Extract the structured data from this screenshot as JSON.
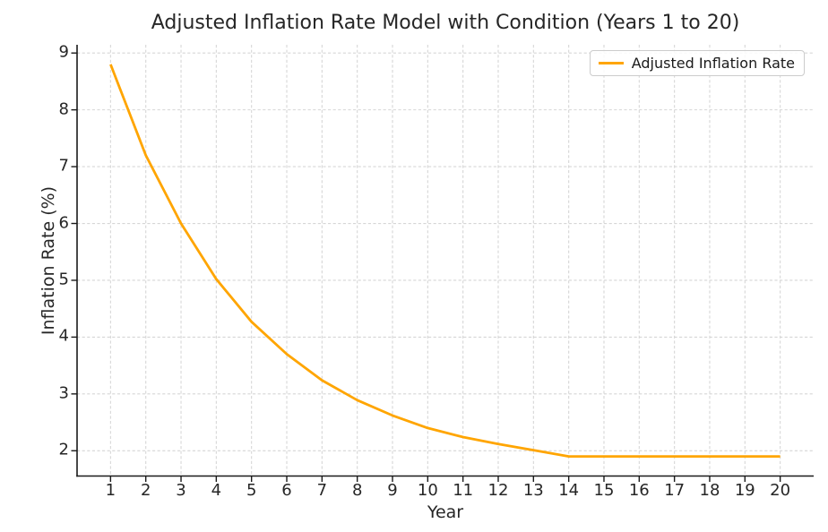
{
  "chart_data": {
    "type": "line",
    "title": "Adjusted Inflation Rate Model with Condition (Years 1 to 20)",
    "xlabel": "Year",
    "ylabel": "Inflation Rate (%)",
    "x": [
      1,
      2,
      3,
      4,
      5,
      6,
      7,
      8,
      9,
      10,
      11,
      12,
      13,
      14,
      15,
      16,
      17,
      18,
      19,
      20
    ],
    "series": [
      {
        "name": "Adjusted Inflation Rate",
        "color": "#FFA500",
        "values": [
          8.8,
          7.2,
          6.0,
          5.02,
          4.27,
          3.7,
          3.24,
          2.89,
          2.62,
          2.4,
          2.24,
          2.12,
          2.01,
          1.9,
          1.9,
          1.9,
          1.9,
          1.9,
          1.9,
          1.9
        ]
      }
    ],
    "xticks": [
      1,
      2,
      3,
      4,
      5,
      6,
      7,
      8,
      9,
      10,
      11,
      12,
      13,
      14,
      15,
      16,
      17,
      18,
      19,
      20
    ],
    "yticks": [
      2,
      3,
      4,
      5,
      6,
      7,
      8,
      9
    ],
    "xlim": [
      0.05,
      20.95
    ],
    "ylim": [
      1.555,
      9.145
    ],
    "grid": true,
    "grid_style": "dashed",
    "legend": {
      "position": "upper right",
      "entries": [
        "Adjusted Inflation Rate"
      ]
    }
  },
  "colors": {
    "line": "#FFA500",
    "grid": "#d6d6d6",
    "spine": "#1a1a1a",
    "text": "#262626",
    "legend_border": "#cccccc",
    "background": "#ffffff"
  }
}
